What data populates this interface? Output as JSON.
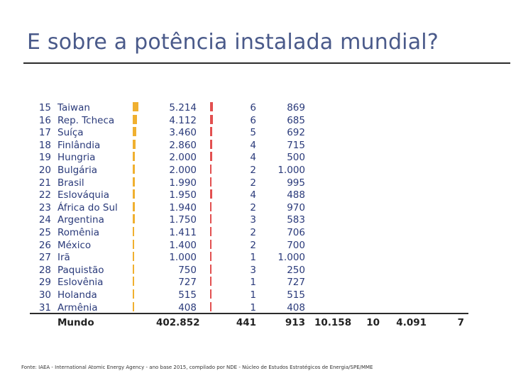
{
  "title": "E sobre a potência instalada mundial?",
  "table": {
    "rows": [
      {
        "rank": "15",
        "country": "Taiwan",
        "mwe": "5.214",
        "units": "6",
        "avg": "869",
        "yellow_level": 0.0126,
        "red_level": 0.0136
      },
      {
        "rank": "16",
        "country": "Rep. Tcheca",
        "mwe": "4.112",
        "units": "6",
        "avg": "685",
        "yellow_level": 0.0099,
        "red_level": 0.0136
      },
      {
        "rank": "17",
        "country": "Suíça",
        "mwe": "3.460",
        "units": "5",
        "avg": "692",
        "yellow_level": 0.0084,
        "red_level": 0.0113
      },
      {
        "rank": "18",
        "country": "Finlândia",
        "mwe": "2.860",
        "units": "4",
        "avg": "715",
        "yellow_level": 0.0069,
        "red_level": 0.0091
      },
      {
        "rank": "19",
        "country": "Hungria",
        "mwe": "2.000",
        "units": "4",
        "avg": "500",
        "yellow_level": 0.0048,
        "red_level": 0.0091
      },
      {
        "rank": "20",
        "country": "Bulgária",
        "mwe": "2.000",
        "units": "2",
        "avg": "1.000",
        "yellow_level": 0.0048,
        "red_level": 0.0045
      },
      {
        "rank": "21",
        "country": "Brasil",
        "mwe": "1.990",
        "units": "2",
        "avg": "995",
        "yellow_level": 0.0048,
        "red_level": 0.0045
      },
      {
        "rank": "22",
        "country": "Eslováquia",
        "mwe": "1.950",
        "units": "4",
        "avg": "488",
        "yellow_level": 0.0047,
        "red_level": 0.0091
      },
      {
        "rank": "23",
        "country": "África do Sul",
        "mwe": "1.940",
        "units": "2",
        "avg": "970",
        "yellow_level": 0.0047,
        "red_level": 0.0045
      },
      {
        "rank": "24",
        "country": "Argentina",
        "mwe": "1.750",
        "units": "3",
        "avg": "583",
        "yellow_level": 0.0042,
        "red_level": 0.0068
      },
      {
        "rank": "25",
        "country": "Romênia",
        "mwe": "1.411",
        "units": "2",
        "avg": "706",
        "yellow_level": 0.0034,
        "red_level": 0.0045
      },
      {
        "rank": "26",
        "country": "México",
        "mwe": "1.400",
        "units": "2",
        "avg": "700",
        "yellow_level": 0.0034,
        "red_level": 0.0045
      },
      {
        "rank": "27",
        "country": "Irã",
        "mwe": "1.000",
        "units": "1",
        "avg": "1.000",
        "yellow_level": 0.0024,
        "red_level": 0.0023
      },
      {
        "rank": "28",
        "country": "Paquistão",
        "mwe": "750",
        "units": "3",
        "avg": "250",
        "yellow_level": 0.0018,
        "red_level": 0.0068
      },
      {
        "rank": "29",
        "country": "Eslovênia",
        "mwe": "727",
        "units": "1",
        "avg": "727",
        "yellow_level": 0.0018,
        "red_level": 0.0023
      },
      {
        "rank": "30",
        "country": "Holanda",
        "mwe": "515",
        "units": "1",
        "avg": "515",
        "yellow_level": 0.0012,
        "red_level": 0.0023
      },
      {
        "rank": "31",
        "country": "Armênia",
        "mwe": "408",
        "units": "1",
        "avg": "408",
        "yellow_level": 0.001,
        "red_level": 0.0023
      }
    ],
    "total": {
      "label": "Mundo",
      "mwe": "402.852",
      "units": "441",
      "avg": "913",
      "extra1": "10.158",
      "extra2": "10",
      "extra3": "4.091",
      "extra4": "7"
    },
    "colors": {
      "yellow_bar": "#f0b030",
      "red_bar": "#e25050",
      "text": "#2a3a7a"
    }
  },
  "footer": "Fonte: IAEA - International Atomic Energy Agency - ano base 2015, compilado por NDE - Núcleo de Estudos Estratégicos de Energia/SPE/MME"
}
